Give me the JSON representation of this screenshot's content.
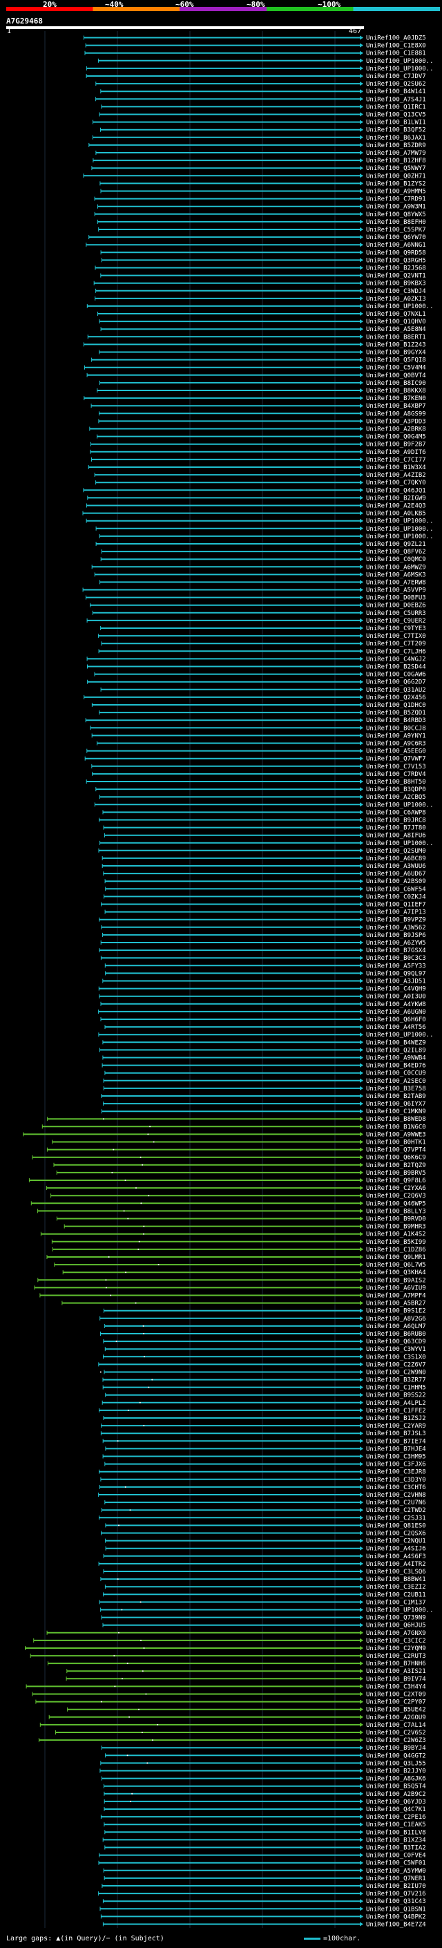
{
  "header": {
    "percent_labels": [
      "20%",
      "~40%",
      "~60%",
      "~80%",
      "~100%"
    ],
    "legend_colors": [
      "#ff0000",
      "#ff8000",
      "#a020c0",
      "#20c020",
      "#20c0d0"
    ],
    "query_name": "A7G29468",
    "ruler_start": "1",
    "ruler_end": "467"
  },
  "footer": {
    "text": "Large gaps: ▲(in Query)/− (in Subject)",
    "scale_text": "=100char."
  },
  "chart_data": {
    "type": "alignment-overview",
    "query_length": 467,
    "hit_prefix": "UniRef100_",
    "hits": [
      "A0JDZ5",
      "C1E8X0",
      "C1E881",
      "UP1000..",
      "UP1000..",
      "C7JDV7",
      "Q2SU62",
      "B4W141",
      "A7S4J1",
      "Q1IRC1",
      "Q13CV5",
      "B1LWI1",
      "B3QF52",
      "B6JAX1",
      "B5ZDR9",
      "A7MW79",
      "B1ZHF8",
      "Q5NWY7",
      "Q0ZH71",
      "B1ZYS2",
      "A9HMM5",
      "C7RD91",
      "A9W3M1",
      "Q8YWX5",
      "B8EFH0",
      "C5SPK7",
      "Q6YW70",
      "A6NNG1",
      "Q9RD58",
      "Q3RGH5",
      "B2J568",
      "Q2VNT1",
      "B9KBX3",
      "C3WDJ4",
      "A0ZKI3",
      "UP1000..",
      "Q7NXL1",
      "Q1QHV0",
      "A5E8N4",
      "B8ERT1",
      "B1Z243",
      "B9GYX4",
      "Q5FQI8",
      "C5V4M4",
      "Q0BVT4",
      "B8IC90",
      "B8KKX8",
      "B7KEN0",
      "B4XBP7",
      "A8GS99",
      "A3PDD3",
      "A2BRK8",
      "Q0G4M5",
      "B9F2B7",
      "A9DIT6",
      "C7CI77",
      "B1W3X4",
      "A4ZIB2",
      "C7QKY0",
      "Q46JQ1",
      "B2IGW9",
      "A2E4Q3",
      "A0LKB5",
      "UP1000..",
      "UP1000..",
      "UP1000..",
      "Q9ZL21",
      "Q8FV62",
      "C0QMC9",
      "A6MWZ9",
      "A6MSK3",
      "A7ERW8",
      "A5VVP9",
      "D0BFU3",
      "D0EBZ6",
      "C5URR3",
      "C9UER2",
      "C9TYE3",
      "C7TIX0",
      "C7T209",
      "C7LJH6",
      "C4WGJ2",
      "B2SD44",
      "C0GAW6",
      "Q6G2D7",
      "Q31AU2",
      "Q2X456",
      "Q1DHC0",
      "B5ZQD1",
      "B4RBD3",
      "B0CCJ8",
      "A9YNY1",
      "A9C6R3",
      "A5EEG0",
      "Q7VWF7",
      "C7V153",
      "C7RDV4",
      "B8HT50",
      "B3QDP0",
      "A2CBQ5",
      "UP1000..",
      "C6AWP8",
      "B9JRC8",
      "B7JT80",
      "A8IFU6",
      "UP1000..",
      "Q2SUM0",
      "A6BC89",
      "A3WUU6",
      "A6UD67",
      "A2BS09",
      "C6WF54",
      "C0ZKJ4",
      "Q1IEF7",
      "A7IP13",
      "B9VPZ9",
      "A3W562",
      "B9JSP6",
      "A6ZYW5",
      "B7GSX4",
      "B0C3C3",
      "A5FY33",
      "Q9QL97",
      "A3JD51",
      "C4VQH9",
      "A0I3U0",
      "A4YKW8",
      "A6UGN0",
      "Q6H6F0",
      "A4RT56",
      "UP1000..",
      "B4WEZ9",
      "Q2IL89",
      "A9NWB4",
      "B4ED76",
      "C0CCU9",
      "A2SEC0",
      "B3E758",
      "B2TAB9",
      "Q6IYX7",
      "C1MKN9",
      "B8WED8",
      "B1N6C0",
      "A9WWE3",
      "B0HTK1",
      "Q7VPT4",
      "Q6K6C9",
      "B2TQZ9",
      "B9BRV5",
      "Q9F8L6",
      "C2YXA6",
      "C2Q6V3",
      "Q46WP5",
      "B8LLY3",
      "B9RVD0",
      "B9MHR3",
      "A1K4S2",
      "B5KI99",
      "C1DZ86",
      "Q9LMR1",
      "Q6L7W5",
      "Q3KHA4",
      "B9AIS2",
      "A6VIU9",
      "A7MPF4",
      "A5BR27",
      "B9S1E2",
      "A8V2G6",
      "A6QLM7",
      "B6RUB0",
      "Q63CD9",
      "C3WYV1",
      "C3S1X0",
      "C2Z6V7",
      "C2W9N0",
      "B3ZR77",
      "C1HHM5",
      "B9SS22",
      "A4LPL2",
      "C1FFE2",
      "B1ZSJ2",
      "C2YAR9",
      "B7JSL3",
      "B7IE74",
      "B7HJE4",
      "C3HM95",
      "C3FJX6",
      "C3EJR8",
      "C3D3Y0",
      "C3CHT6",
      "C2VHN8",
      "C2U7N6",
      "C2TWD2",
      "C2SJ31",
      "Q81ES0",
      "C2QSX6",
      "C2NQU1",
      "A4SIJ6",
      "A4S6F3",
      "A4ITR2",
      "C3LSQ6",
      "B8BW41",
      "C3EZI2",
      "C2UB11",
      "C1M137",
      "UP1000..",
      "Q739N9",
      "Q6HJU5",
      "A7GNX9",
      "C3CIC2",
      "C2YQM9",
      "C2RUT3",
      "B7HNH6",
      "A3IS21",
      "B9IV74",
      "C3H4Y4",
      "C2XT09",
      "C2PY07",
      "B5UE42",
      "A2GOU9",
      "C7AL14",
      "C2V6S2",
      "C2W6Z3",
      "B9BYJ4",
      "Q4GGT2",
      "Q3LJ55",
      "B2JJY0",
      "A8GJK6",
      "B5Q5T4",
      "A2B9C2",
      "Q6YJD3",
      "Q4C7K1",
      "C2PE16",
      "C1EAK5",
      "B1ILV8",
      "B1XZ34",
      "B3TIA2",
      "C0FVE4",
      "C5WF01",
      "A5YMW0",
      "Q7NER1",
      "B2IU70",
      "Q7V216",
      "Q31C43",
      "Q1BSN1",
      "Q4BPK2",
      "B4E7Z4"
    ]
  }
}
